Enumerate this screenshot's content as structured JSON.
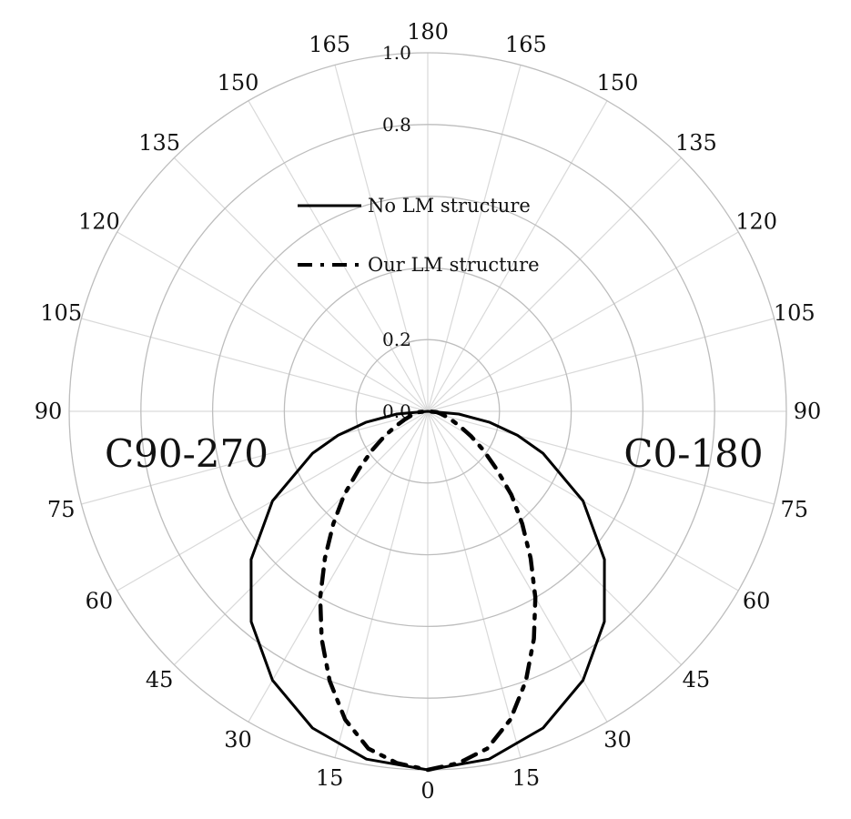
{
  "chart_data": {
    "type": "polar-line",
    "title": "",
    "planes": {
      "left": "C90-270",
      "right": "C0-180"
    },
    "angle_ticks": {
      "left": [
        "0",
        "15",
        "30",
        "45",
        "60",
        "75",
        "90",
        "105",
        "120",
        "135",
        "150",
        "165",
        "180"
      ],
      "right": [
        "15",
        "30",
        "45",
        "60",
        "75",
        "90",
        "105",
        "120",
        "135",
        "150",
        "165"
      ]
    },
    "angle_step_deg": 15,
    "radial": {
      "range": [
        0,
        1.0
      ],
      "step": 0.2,
      "tick_labels": [
        "0.0",
        "0.2",
        "0.8",
        "1.0"
      ]
    },
    "grid": true,
    "legend": {
      "position": "center-top",
      "entries": [
        {
          "label": "No LM structure",
          "style": "solid"
        },
        {
          "label": "Our LM structure",
          "style": "dash-dot"
        }
      ]
    },
    "series": [
      {
        "name": "No LM structure",
        "angles_deg": [
          0,
          10,
          20,
          30,
          40,
          50,
          60,
          70,
          75,
          80,
          85,
          90
        ],
        "values": [
          1.0,
          0.985,
          0.94,
          0.866,
          0.766,
          0.643,
          0.5,
          0.342,
          0.259,
          0.174,
          0.087,
          0.0
        ]
      },
      {
        "name": "Our LM structure",
        "angles_deg": [
          0,
          5,
          10,
          15,
          20,
          25,
          30,
          35,
          40,
          45,
          50,
          55,
          60,
          65,
          70,
          75,
          80,
          85,
          90
        ],
        "values": [
          1.0,
          0.985,
          0.955,
          0.89,
          0.8,
          0.7,
          0.6,
          0.5,
          0.41,
          0.33,
          0.25,
          0.19,
          0.14,
          0.1,
          0.07,
          0.05,
          0.035,
          0.025,
          0.0
        ]
      }
    ]
  }
}
